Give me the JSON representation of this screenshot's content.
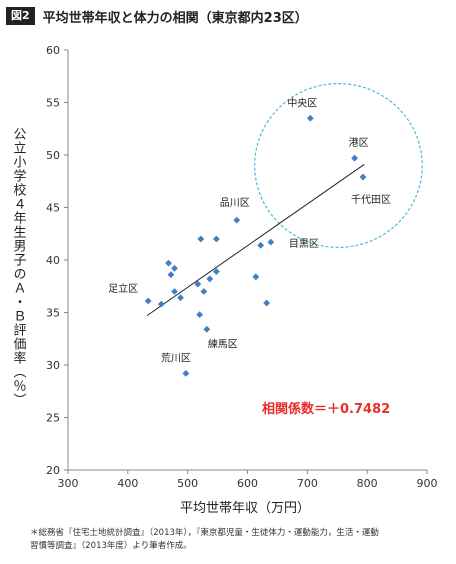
{
  "figure_label": "図2",
  "title": "平均世帯年収と体力の相関（東京都内23区）",
  "note_line1": "＊総務省『住宅土地統計調査』（2013年），『東京都児童・生徒体力・運動能力，生活・運動",
  "note_line2": "習慣等調査』（2013年度）より筆者作成。",
  "colors": {
    "marker": "#3f7fc3",
    "annotation_red": "#e8302a",
    "ellipse": "#4db8d8",
    "trend": "#222222"
  },
  "chart_data": {
    "type": "scatter",
    "xlabel": "平均世帯年収（万円）",
    "ylabel": "公立小学校４年生男子のＡ・Ｂ評価率（％）",
    "xlim": [
      300,
      900
    ],
    "ylim": [
      20,
      60
    ],
    "x_ticks": [
      "300",
      "400",
      "500",
      "600",
      "700",
      "800",
      "900"
    ],
    "y_ticks": [
      "20",
      "25",
      "30",
      "35",
      "40",
      "45",
      "50",
      "55",
      "60"
    ],
    "grid": false,
    "correlation_label": "相関係数＝＋0.7482",
    "trendline": {
      "x1": 432,
      "y1": 34.7,
      "x2": 795,
      "y2": 49.1
    },
    "points": [
      {
        "x": 705,
        "y": 53.5,
        "label": "中央区"
      },
      {
        "x": 779,
        "y": 49.7,
        "label": "港区"
      },
      {
        "x": 793,
        "y": 47.9,
        "label": "千代田区"
      },
      {
        "x": 582,
        "y": 43.8,
        "label": "品川区"
      },
      {
        "x": 639,
        "y": 41.7,
        "label": "目黒区"
      },
      {
        "x": 434,
        "y": 36.1,
        "label": "足立区"
      },
      {
        "x": 532,
        "y": 33.4,
        "label": "練馬区"
      },
      {
        "x": 497,
        "y": 29.2,
        "label": "荒川区"
      },
      {
        "x": 522,
        "y": 42.0,
        "label": ""
      },
      {
        "x": 548,
        "y": 42.0,
        "label": ""
      },
      {
        "x": 622,
        "y": 41.4,
        "label": ""
      },
      {
        "x": 468,
        "y": 39.7,
        "label": ""
      },
      {
        "x": 478,
        "y": 39.2,
        "label": ""
      },
      {
        "x": 472,
        "y": 38.6,
        "label": ""
      },
      {
        "x": 548,
        "y": 38.9,
        "label": ""
      },
      {
        "x": 537,
        "y": 38.2,
        "label": ""
      },
      {
        "x": 614,
        "y": 38.4,
        "label": ""
      },
      {
        "x": 517,
        "y": 37.7,
        "label": ""
      },
      {
        "x": 527,
        "y": 37.0,
        "label": ""
      },
      {
        "x": 478,
        "y": 37.0,
        "label": ""
      },
      {
        "x": 488,
        "y": 36.4,
        "label": ""
      },
      {
        "x": 456,
        "y": 35.8,
        "label": ""
      },
      {
        "x": 632,
        "y": 35.9,
        "label": ""
      },
      {
        "x": 520,
        "y": 34.8,
        "label": ""
      }
    ],
    "highlight": {
      "cx": 752,
      "cy": 49.0,
      "rx": 140,
      "ry": 7.8
    }
  }
}
